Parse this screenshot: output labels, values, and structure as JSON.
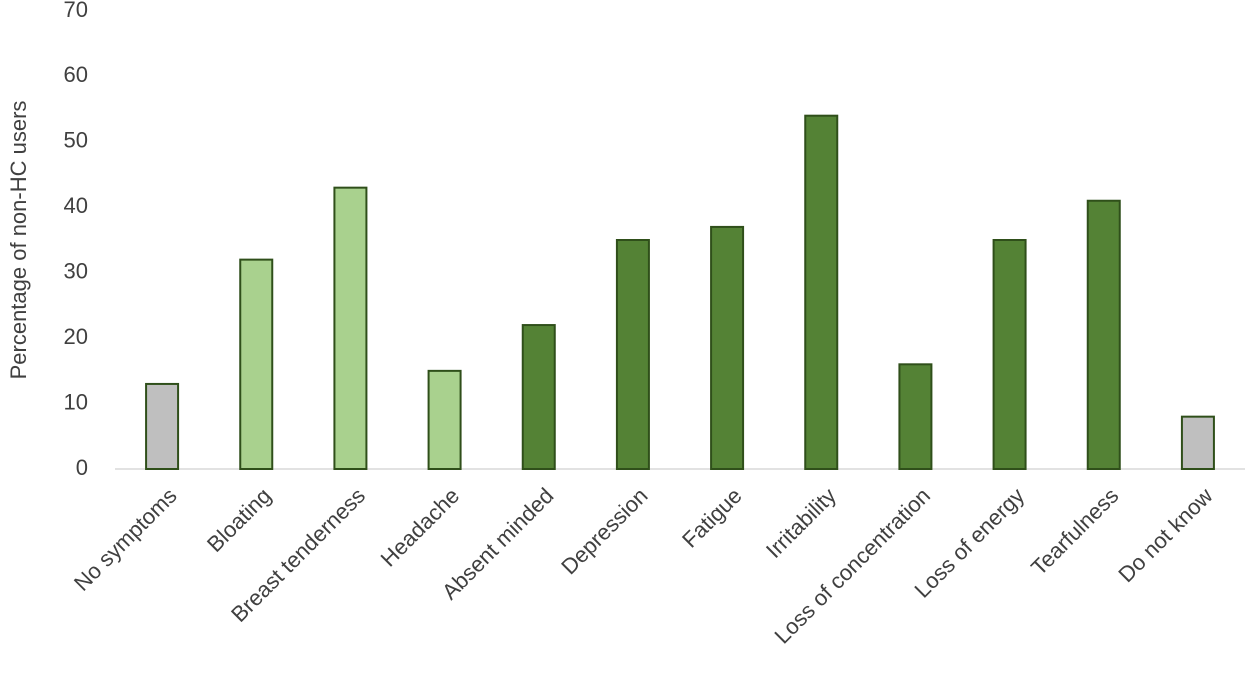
{
  "chart_data": {
    "type": "bar",
    "y_label": "Percentage of non-HC users",
    "categories": [
      "No symptoms",
      "Bloating",
      "Breast tenderness",
      "Headache",
      "Absent minded",
      "Depression",
      "Fatigue",
      "Irritability",
      "Loss of concentration",
      "Loss of energy",
      "Tearfulness",
      "Do not know"
    ],
    "values": [
      13,
      32,
      43,
      15,
      22,
      35,
      37,
      54,
      16,
      35,
      41,
      8
    ],
    "colors": [
      "#bfbfbf",
      "#a9d18e",
      "#a9d18e",
      "#a9d18e",
      "#548235",
      "#548235",
      "#548235",
      "#548235",
      "#548235",
      "#548235",
      "#548235",
      "#bfbfbf"
    ],
    "edgecolor": "#2f4f1a",
    "ylim": [
      0,
      70
    ],
    "yticks": [
      0,
      10,
      20,
      30,
      40,
      50,
      60,
      70
    ],
    "grid": false
  }
}
